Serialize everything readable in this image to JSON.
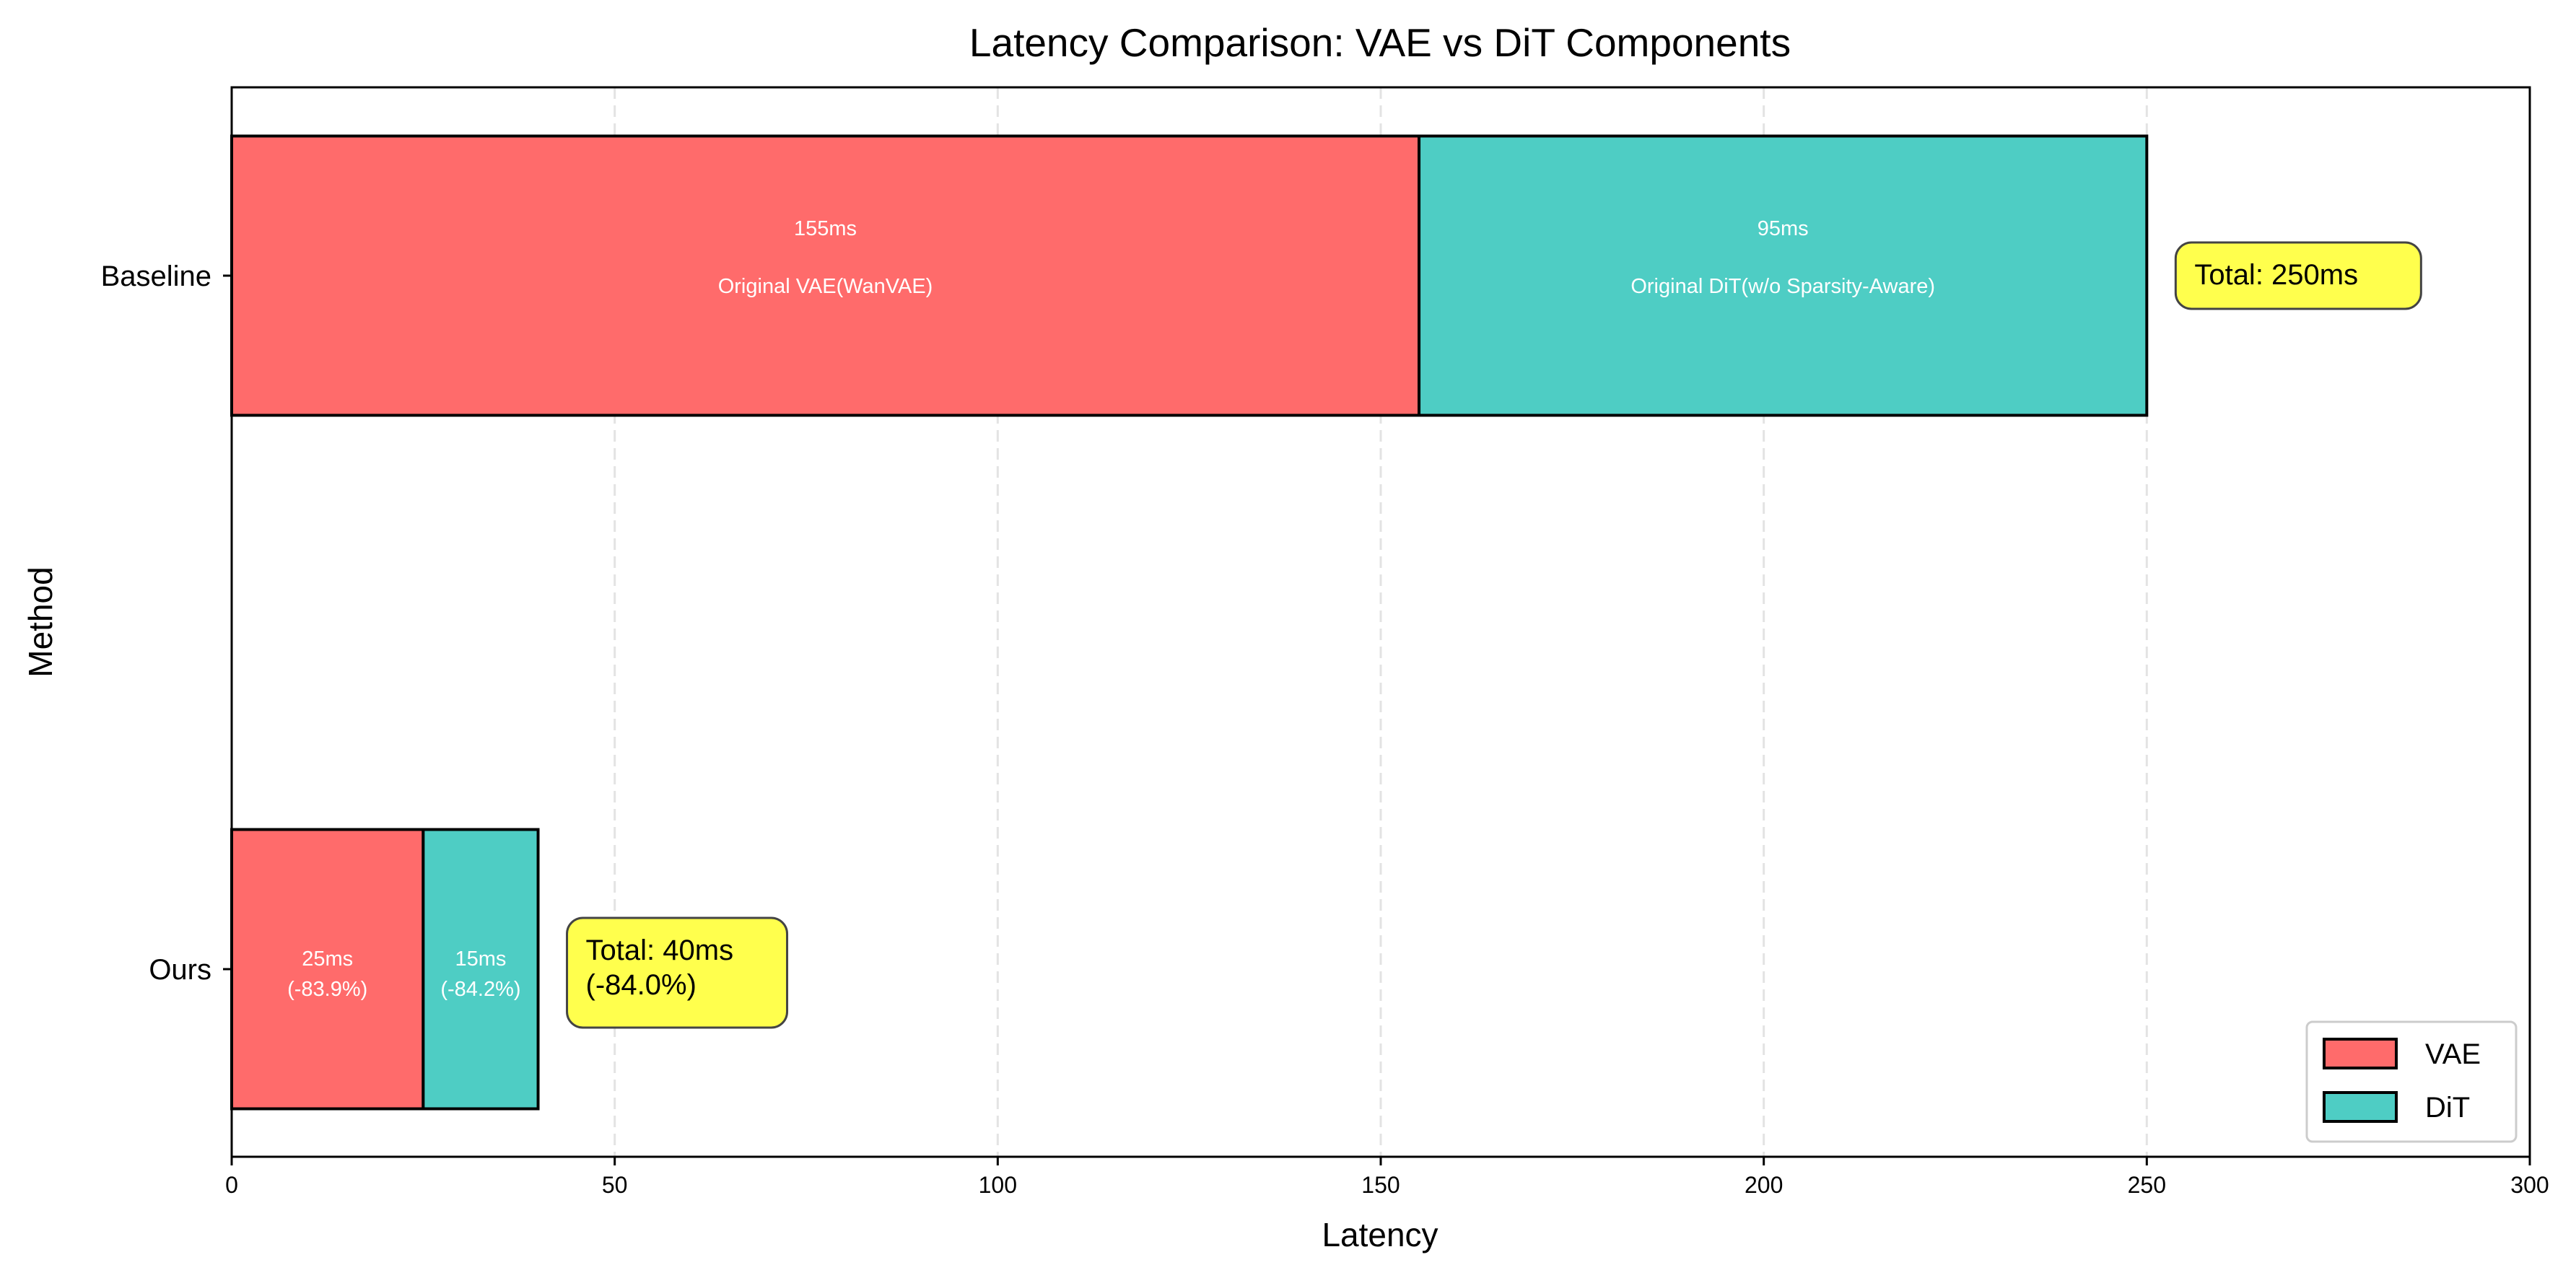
{
  "chart_data": {
    "type": "bar",
    "orientation": "horizontal",
    "stacked": true,
    "title": "Latency Comparison: VAE vs DiT Components",
    "xlabel": "Latency",
    "ylabel": "Method",
    "xlim": [
      0,
      300
    ],
    "xticks": [
      0,
      50,
      100,
      150,
      200,
      250,
      300
    ],
    "grid": "x, dashed",
    "legend_position": "lower-right",
    "categories": [
      "Baseline",
      "Ours"
    ],
    "series": [
      {
        "name": "VAE",
        "color": "#FF6B6B",
        "values": [
          155,
          25
        ],
        "labels": [
          [
            "155ms",
            "Original VAE(WanVAE)"
          ],
          [
            "25ms",
            "(-83.9%)"
          ]
        ]
      },
      {
        "name": "DiT",
        "color": "#4ECDC4",
        "values": [
          95,
          15
        ],
        "labels": [
          [
            "95ms",
            "Original DiT(w/o Sparsity-Aware)"
          ],
          [
            "15ms",
            "(-84.2%)"
          ]
        ]
      }
    ],
    "totals": [
      [
        "Total: 250ms"
      ],
      [
        "Total: 40ms",
        "(-84.0%)"
      ]
    ],
    "annotation_color": "#FFFF4D"
  }
}
